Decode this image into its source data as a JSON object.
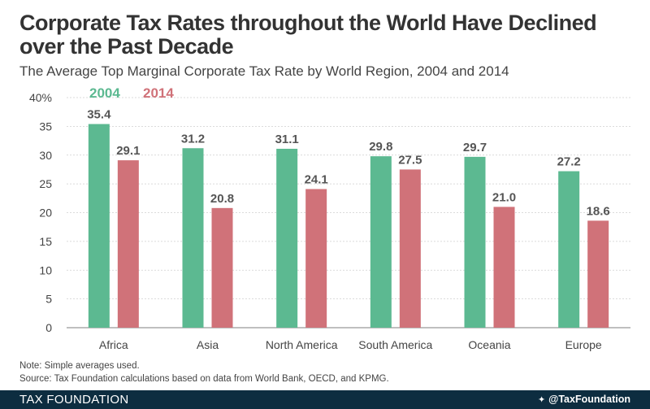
{
  "title": "Corporate Tax Rates throughout the World Have Declined over the Past Decade",
  "subtitle": "The Average Top Marginal Corporate Tax Rate by World Region, 2004 and 2014",
  "notes": {
    "note": "Note: Simple averages used.",
    "source": "Source: Tax Foundation calculations based on data from World Bank, OECD, and KPMG."
  },
  "footer": {
    "brand": "TAX FOUNDATION",
    "handle": "@TaxFoundation",
    "icon": "twitter-bird-icon"
  },
  "colors": {
    "series_2004": "#5cb991",
    "series_2014": "#d07279",
    "grid": "#cfcfcf",
    "footer_bg": "#0d2d40"
  },
  "chart_data": {
    "type": "bar",
    "title": "Corporate Tax Rates throughout the World Have Declined over the Past Decade",
    "xlabel": "",
    "ylabel": "",
    "ylim": [
      0,
      40
    ],
    "yticks": [
      "0",
      "5",
      "10",
      "15",
      "20",
      "25",
      "30",
      "35",
      "40%"
    ],
    "grid": true,
    "legend_position": "top-left",
    "categories": [
      "Africa",
      "Asia",
      "North America",
      "South America",
      "Oceania",
      "Europe"
    ],
    "series": [
      {
        "name": "2004",
        "values": [
          35.4,
          31.2,
          31.1,
          29.8,
          29.7,
          27.2
        ],
        "labels": [
          "35.4",
          "31.2",
          "31.1",
          "29.8",
          "29.7",
          "27.2"
        ]
      },
      {
        "name": "2014",
        "values": [
          29.1,
          20.8,
          24.1,
          27.5,
          21.0,
          18.6
        ],
        "labels": [
          "29.1",
          "20.8",
          "24.1",
          "27.5",
          "21.0",
          "18.6"
        ]
      }
    ]
  }
}
